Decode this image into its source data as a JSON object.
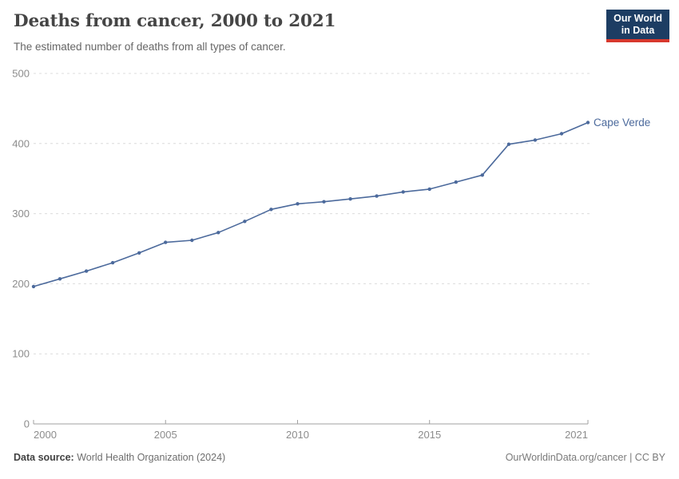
{
  "header": {
    "title": "Deaths from cancer, 2000 to 2021",
    "subtitle": "The estimated number of deaths from all types of cancer.",
    "logo": {
      "line1": "Our World",
      "line2": "in Data",
      "bg_color": "#1d3d63",
      "accent_color": "#d7382d"
    }
  },
  "chart_data": {
    "type": "line",
    "title": "Deaths from cancer, 2000 to 2021",
    "subtitle": "The estimated number of deaths from all types of cancer.",
    "xlabel": "",
    "ylabel": "",
    "x": [
      2000,
      2001,
      2002,
      2003,
      2004,
      2005,
      2006,
      2007,
      2008,
      2009,
      2010,
      2011,
      2012,
      2013,
      2014,
      2015,
      2016,
      2017,
      2018,
      2019,
      2020,
      2021
    ],
    "series": [
      {
        "name": "Cape Verde",
        "color": "#4C6A9C",
        "values": [
          196,
          207,
          218,
          230,
          244,
          259,
          262,
          273,
          289,
          306,
          314,
          317,
          321,
          325,
          331,
          335,
          345,
          355,
          399,
          405,
          414,
          430
        ]
      }
    ],
    "xticks": [
      2000,
      2005,
      2010,
      2015,
      2021
    ],
    "yticks": [
      0,
      100,
      200,
      300,
      400,
      500
    ],
    "xlim": [
      2000,
      2021
    ],
    "ylim": [
      0,
      500
    ],
    "grid": "horizontal-dashed",
    "gridline_color": "#dcdcdc",
    "axis_color": "#a0a0a0",
    "tick_label_color": "#8c8c8c",
    "legend": "end-of-line-label"
  },
  "footer": {
    "source_label": "Data source:",
    "source_value": "World Health Organization (2024)",
    "link_text": "OurWorldinData.org/cancer | CC BY"
  }
}
